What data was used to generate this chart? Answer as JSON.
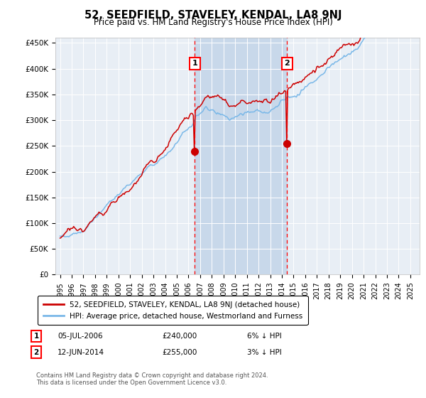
{
  "title": "52, SEEDFIELD, STAVELEY, KENDAL, LA8 9NJ",
  "subtitle": "Price paid vs. HM Land Registry's House Price Index (HPI)",
  "legend_line1": "52, SEEDFIELD, STAVELEY, KENDAL, LA8 9NJ (detached house)",
  "legend_line2": "HPI: Average price, detached house, Westmorland and Furness",
  "transaction1_date": "05-JUL-2006",
  "transaction1_price": "£240,000",
  "transaction1_hpi": "6% ↓ HPI",
  "transaction2_date": "12-JUN-2014",
  "transaction2_price": "£255,000",
  "transaction2_hpi": "3% ↓ HPI",
  "footnote": "Contains HM Land Registry data © Crown copyright and database right 2024.\nThis data is licensed under the Open Government Licence v3.0.",
  "hpi_color": "#7ab8e8",
  "price_color": "#cc0000",
  "t1_year": 2006.54,
  "t2_year": 2014.45,
  "marker1_price": 240000,
  "marker2_price": 255000,
  "ylim": [
    0,
    460000
  ],
  "xlim_start": 1994.6,
  "xlim_end": 2025.8,
  "background_color": "#ffffff",
  "plot_bg_color": "#e8eef5",
  "shade_color": "#c8d8ea"
}
